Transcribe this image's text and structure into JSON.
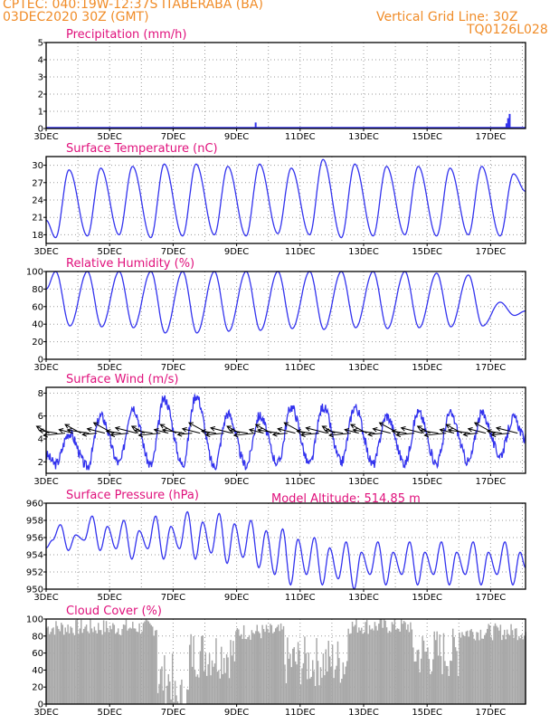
{
  "header": {
    "station_line": "CPTEC:    040:19W-12:37S   ITABERABA (BA)",
    "date_line": "03DEC2020 30Z (GMT)",
    "grid_line": "Vertical Grid Line: 30Z",
    "run_code": "TQ0126L028"
  },
  "model_altitude": "Model Altitude: 514.85 m",
  "x_ticks": [
    "3DEC",
    "5DEC",
    "7DEC",
    "9DEC",
    "11DEC",
    "13DEC",
    "15DEC",
    "17DEC"
  ],
  "x_tick_days": [
    3,
    5,
    7,
    9,
    11,
    13,
    15,
    17
  ],
  "x_range_days": [
    3,
    18.1
  ],
  "colors": {
    "line": "#3333ee",
    "title": "#e0117c",
    "header": "#f08c28",
    "cloud_bar": "#a8a8a8",
    "frame": "#000000"
  },
  "chart_data": [
    {
      "type": "bar",
      "title": "Precipitation (mm/h)",
      "ylim": [
        0,
        5
      ],
      "yticks": [
        0,
        1,
        2,
        3,
        4,
        5
      ],
      "grid": true,
      "x_days": [
        9.6,
        17.5,
        17.55,
        17.6
      ],
      "values": [
        0.35,
        0.3,
        0.6,
        0.85
      ]
    },
    {
      "type": "line",
      "title": "Surface Temperature (nC)",
      "ylim": [
        16.5,
        31.5
      ],
      "yticks": [
        18,
        21,
        24,
        27,
        30
      ],
      "grid": true,
      "daily_min": [
        17.5,
        17.8,
        18.0,
        17.5,
        17.8,
        18.0,
        17.8,
        18.2,
        18.0,
        17.5,
        17.8,
        18.0,
        17.8,
        18.0,
        17.8
      ],
      "daily_max": [
        29.2,
        29.5,
        29.8,
        30.2,
        30.2,
        29.8,
        30.2,
        29.5,
        31.0,
        30.2,
        29.8,
        29.8,
        29.5,
        29.8,
        28.5
      ],
      "start_value": 20.5,
      "end_value": 25.5
    },
    {
      "type": "line",
      "title": "Relative Humidity (%)",
      "ylim": [
        0,
        100
      ],
      "yticks": [
        0,
        20,
        40,
        60,
        80,
        100
      ],
      "grid": true,
      "daily_min": [
        38,
        37,
        36,
        30,
        30,
        32,
        33,
        35,
        34,
        36,
        35,
        36,
        37,
        38,
        50
      ],
      "daily_max": [
        100,
        100,
        100,
        100,
        100,
        100,
        100,
        100,
        100,
        100,
        100,
        100,
        98,
        96,
        65
      ],
      "start_value": 80,
      "end_value": 55
    },
    {
      "type": "line",
      "title": "Surface Wind (m/s)",
      "ylim": [
        1,
        8.5
      ],
      "yticks": [
        2,
        4,
        6,
        8
      ],
      "grid": true,
      "daily_min": [
        1.8,
        1.6,
        1.9,
        1.7,
        1.8,
        1.6,
        1.7,
        1.9,
        1.8,
        2.0,
        1.8,
        1.9,
        1.9,
        2.0,
        2.6
      ],
      "daily_max": [
        4.5,
        6.0,
        6.8,
        7.5,
        7.8,
        6.2,
        6.0,
        6.8,
        6.8,
        6.8,
        6.0,
        6.3,
        6.2,
        6.2,
        5.8
      ],
      "start_value": 2.6,
      "end_value": 4.0,
      "wind_arrows": "blowing from the east and northeast, plotted every 6 h"
    },
    {
      "type": "line",
      "title": "Surface Pressure (hPa)",
      "ylim": [
        950,
        960
      ],
      "yticks": [
        950,
        952,
        954,
        956,
        958,
        960
      ],
      "grid": true,
      "daily_high": [
        957.5,
        958.5,
        958.0,
        958.5,
        959.0,
        958.8,
        958.0,
        957.0,
        956.0,
        955.5,
        955.5,
        955.5,
        955.5,
        955.5,
        955.5
      ],
      "daily_low": [
        954.5,
        954.5,
        953.5,
        953.5,
        953.5,
        953.0,
        952.5,
        950.5,
        950.5,
        950.0,
        950.5,
        950.5,
        950.5,
        950.5,
        950.5
      ],
      "start_value": 954.8,
      "end_value": 952.5
    },
    {
      "type": "bar",
      "title": "Cloud Cover (%)",
      "ylim": [
        0,
        100
      ],
      "yticks": [
        0,
        20,
        40,
        60,
        80,
        100
      ],
      "grid": true,
      "segments": [
        {
          "from_day": 3.0,
          "to_day": 6.5,
          "cover": 90
        },
        {
          "from_day": 6.5,
          "to_day": 7.0,
          "cover": 30
        },
        {
          "from_day": 7.0,
          "to_day": 7.5,
          "cover": 5
        },
        {
          "from_day": 7.5,
          "to_day": 9.0,
          "cover": 60
        },
        {
          "from_day": 9.0,
          "to_day": 10.5,
          "cover": 85
        },
        {
          "from_day": 10.5,
          "to_day": 12.5,
          "cover": 50
        },
        {
          "from_day": 12.5,
          "to_day": 14.5,
          "cover": 92
        },
        {
          "from_day": 14.5,
          "to_day": 16.0,
          "cover": 60
        },
        {
          "from_day": 16.0,
          "to_day": 18.1,
          "cover": 85
        }
      ]
    }
  ]
}
